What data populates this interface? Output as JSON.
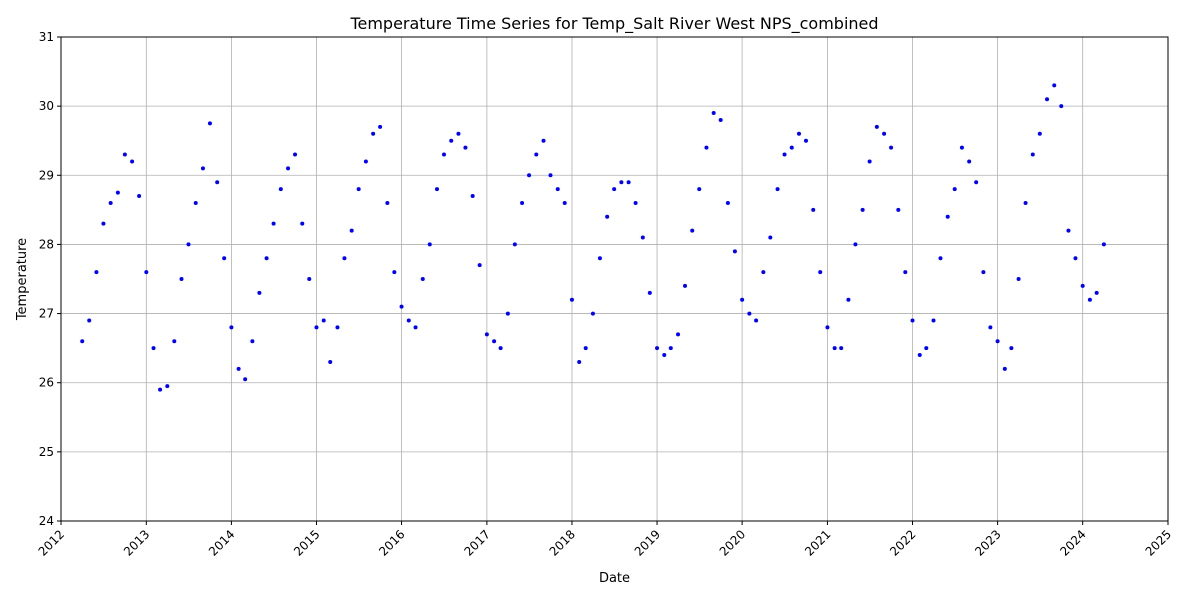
{
  "chart_data": {
    "type": "scatter",
    "title": "Temperature Time Series for Temp_Salt River West NPS_combined",
    "xlabel": "Date",
    "ylabel": "Temperature",
    "xlim": [
      "2012-01-01",
      "2025-01-01"
    ],
    "ylim": [
      24,
      31
    ],
    "x_ticks": [
      "2012",
      "2013",
      "2014",
      "2015",
      "2016",
      "2017",
      "2018",
      "2019",
      "2020",
      "2021",
      "2022",
      "2023",
      "2024",
      "2025"
    ],
    "y_ticks": [
      "24",
      "25",
      "26",
      "27",
      "28",
      "29",
      "30",
      "31"
    ],
    "grid": true,
    "marker_color": "#0000ff",
    "series": [
      {
        "x": [
          "2012-04-01",
          "2012-05-01",
          "2012-06-01",
          "2012-07-01",
          "2012-08-01",
          "2012-09-01",
          "2012-10-01",
          "2012-11-01",
          "2012-12-01",
          "2013-01-01",
          "2013-02-01",
          "2013-03-01",
          "2013-04-01",
          "2013-05-01",
          "2013-06-01",
          "2013-07-01",
          "2013-08-01",
          "2013-09-01",
          "2013-10-01",
          "2013-11-01",
          "2013-12-01",
          "2014-01-01",
          "2014-02-01",
          "2014-03-01",
          "2014-04-01",
          "2014-05-01",
          "2014-06-01",
          "2014-07-01",
          "2014-08-01",
          "2014-09-01",
          "2014-10-01",
          "2014-11-01",
          "2014-12-01",
          "2015-01-01",
          "2015-02-01",
          "2015-03-01",
          "2015-04-01",
          "2015-05-01",
          "2015-06-01",
          "2015-07-01",
          "2015-08-01",
          "2015-09-01",
          "2015-10-01",
          "2015-11-01",
          "2015-12-01",
          "2016-01-01",
          "2016-02-01",
          "2016-03-01",
          "2016-04-01",
          "2016-05-01",
          "2016-06-01",
          "2016-07-01",
          "2016-08-01",
          "2016-09-01",
          "2016-10-01",
          "2016-11-01",
          "2016-12-01",
          "2017-01-01",
          "2017-02-01",
          "2017-03-01",
          "2017-04-01",
          "2017-05-01",
          "2017-06-01",
          "2017-07-01",
          "2017-08-01",
          "2017-09-01",
          "2017-10-01",
          "2017-11-01",
          "2017-12-01",
          "2018-01-01",
          "2018-02-01",
          "2018-03-01",
          "2018-04-01",
          "2018-05-01",
          "2018-06-01",
          "2018-07-01",
          "2018-08-01",
          "2018-09-01",
          "2018-10-01",
          "2018-11-01",
          "2018-12-01",
          "2019-01-01",
          "2019-02-01",
          "2019-03-01",
          "2019-04-01",
          "2019-05-01",
          "2019-06-01",
          "2019-07-01",
          "2019-08-01",
          "2019-09-01",
          "2019-10-01",
          "2019-11-01",
          "2019-12-01",
          "2020-01-01",
          "2020-02-01",
          "2020-03-01",
          "2020-04-01",
          "2020-05-01",
          "2020-06-01",
          "2020-07-01",
          "2020-08-01",
          "2020-09-01",
          "2020-10-01",
          "2020-11-01",
          "2020-12-01",
          "2021-01-01",
          "2021-02-01",
          "2021-03-01",
          "2021-04-01",
          "2021-05-01",
          "2021-06-01",
          "2021-07-01",
          "2021-08-01",
          "2021-09-01",
          "2021-10-01",
          "2021-11-01",
          "2021-12-01",
          "2022-01-01",
          "2022-02-01",
          "2022-03-01",
          "2022-04-01",
          "2022-05-01",
          "2022-06-01",
          "2022-07-01",
          "2022-08-01",
          "2022-09-01",
          "2022-10-01",
          "2022-11-01",
          "2022-12-01",
          "2023-01-01",
          "2023-02-01",
          "2023-03-01",
          "2023-04-01",
          "2023-05-01",
          "2023-06-01",
          "2023-07-01",
          "2023-08-01",
          "2023-09-01",
          "2023-10-01",
          "2023-11-01",
          "2023-12-01",
          "2024-01-01",
          "2024-02-01",
          "2024-03-01",
          "2024-04-01"
        ],
        "y": [
          26.6,
          26.9,
          27.6,
          28.3,
          28.6,
          28.75,
          29.3,
          29.2,
          28.7,
          27.6,
          26.5,
          25.9,
          25.95,
          26.6,
          27.5,
          28.0,
          28.6,
          29.1,
          29.75,
          28.9,
          27.8,
          26.8,
          26.2,
          26.05,
          26.6,
          27.3,
          27.8,
          28.3,
          28.8,
          29.1,
          29.3,
          28.3,
          27.5,
          26.8,
          26.9,
          26.3,
          26.8,
          27.8,
          28.2,
          28.8,
          29.2,
          29.6,
          29.7,
          28.6,
          27.6,
          27.1,
          26.9,
          26.8,
          27.5,
          28.0,
          28.8,
          29.3,
          29.5,
          29.6,
          29.4,
          28.7,
          27.7,
          26.7,
          26.6,
          26.5,
          27.0,
          28.0,
          28.6,
          29.0,
          29.3,
          29.5,
          29.0,
          28.8,
          28.6,
          27.2,
          26.3,
          26.5,
          27.0,
          27.8,
          28.4,
          28.8,
          28.9,
          28.9,
          28.6,
          28.1,
          27.3,
          26.5,
          26.4,
          26.5,
          26.7,
          27.4,
          28.2,
          28.8,
          29.4,
          29.9,
          29.8,
          28.6,
          27.9,
          27.2,
          27.0,
          26.9,
          27.6,
          28.1,
          28.8,
          29.3,
          29.4,
          29.6,
          29.5,
          28.5,
          27.6,
          26.8,
          26.5,
          26.5,
          27.2,
          28.0,
          28.5,
          29.2,
          29.7,
          29.6,
          29.4,
          28.5,
          27.6,
          26.9,
          26.4,
          26.5,
          26.9,
          27.8,
          28.4,
          28.8,
          29.4,
          29.2,
          28.9,
          27.6,
          26.8,
          26.6,
          26.2,
          26.5,
          27.5,
          28.6,
          29.3,
          29.6,
          30.1,
          30.3,
          30.0,
          28.2,
          27.8,
          27.4,
          27.2,
          27.3,
          28.0
        ]
      }
    ]
  }
}
